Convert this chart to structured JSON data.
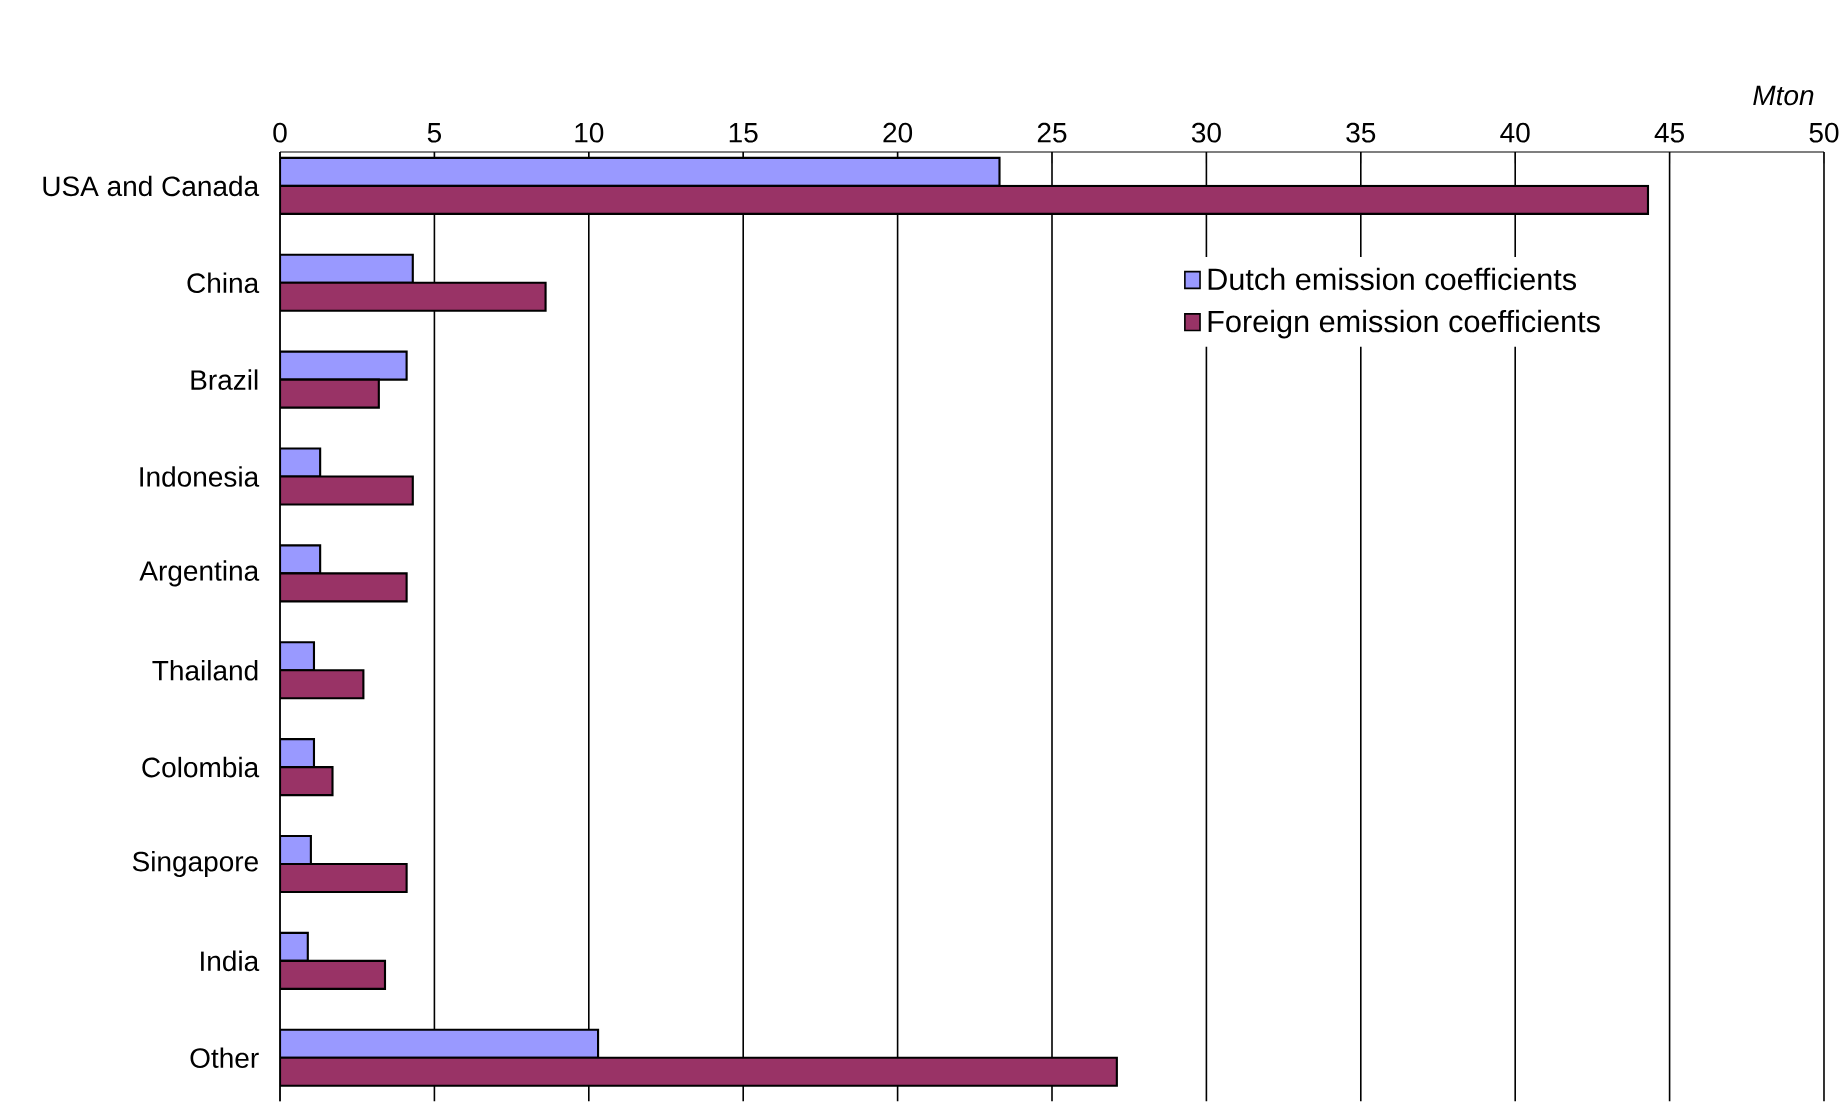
{
  "chart_data": {
    "type": "bar",
    "orientation": "horizontal",
    "xlabel": "Mton",
    "categories": [
      "USA and Canada",
      "China",
      "Brazil",
      "Indonesia",
      "Argentina",
      "Thailand",
      "Colombia",
      "Singapore",
      "India",
      "Other"
    ],
    "series": [
      {
        "name": "Dutch emission coefficients",
        "color": "#9999ff",
        "values": [
          23.3,
          4.3,
          4.1,
          1.3,
          1.3,
          1.1,
          1.1,
          1.0,
          0.9,
          10.3
        ]
      },
      {
        "name": "Foreign emission coefficients",
        "color": "#993366",
        "values": [
          44.3,
          8.6,
          3.2,
          4.3,
          4.1,
          2.7,
          1.7,
          4.1,
          3.4,
          27.1
        ]
      }
    ],
    "xlim": [
      0,
      50
    ],
    "xticks": [
      0,
      5,
      10,
      15,
      20,
      25,
      30,
      35,
      40,
      45,
      50
    ],
    "grid": "x",
    "legend": "right"
  }
}
